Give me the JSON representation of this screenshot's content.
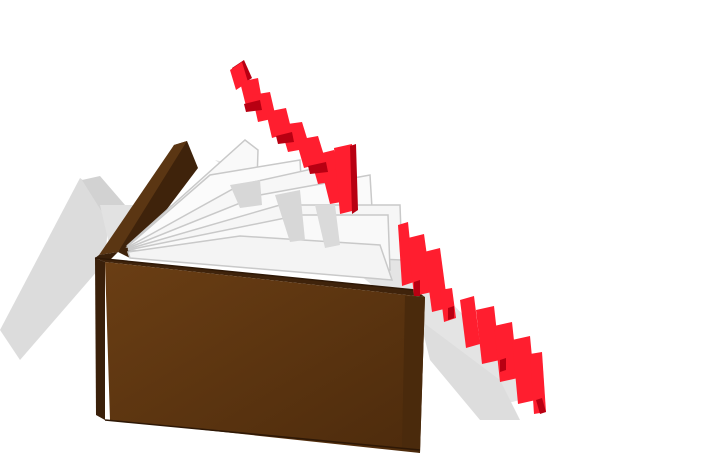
{
  "scene": {
    "background_color": "#ffffff",
    "shadow_color": "#d9d9d9",
    "book": {
      "cover_front_color": "#5a3511",
      "cover_edge_color": "#3f230b",
      "spine_color": "#6a4219",
      "page_color": "#f7f7f7",
      "page_edge_color": "#c8c8c8",
      "page_shadow_color": "#cfcfcf",
      "page_count_visible": 7
    },
    "extruded_text": {
      "face_color": "#ff1e2f",
      "side_color": "#b80012",
      "shadow_color": "#cfcfcf",
      "word_lines": [
        "",
        ""
      ]
    }
  }
}
